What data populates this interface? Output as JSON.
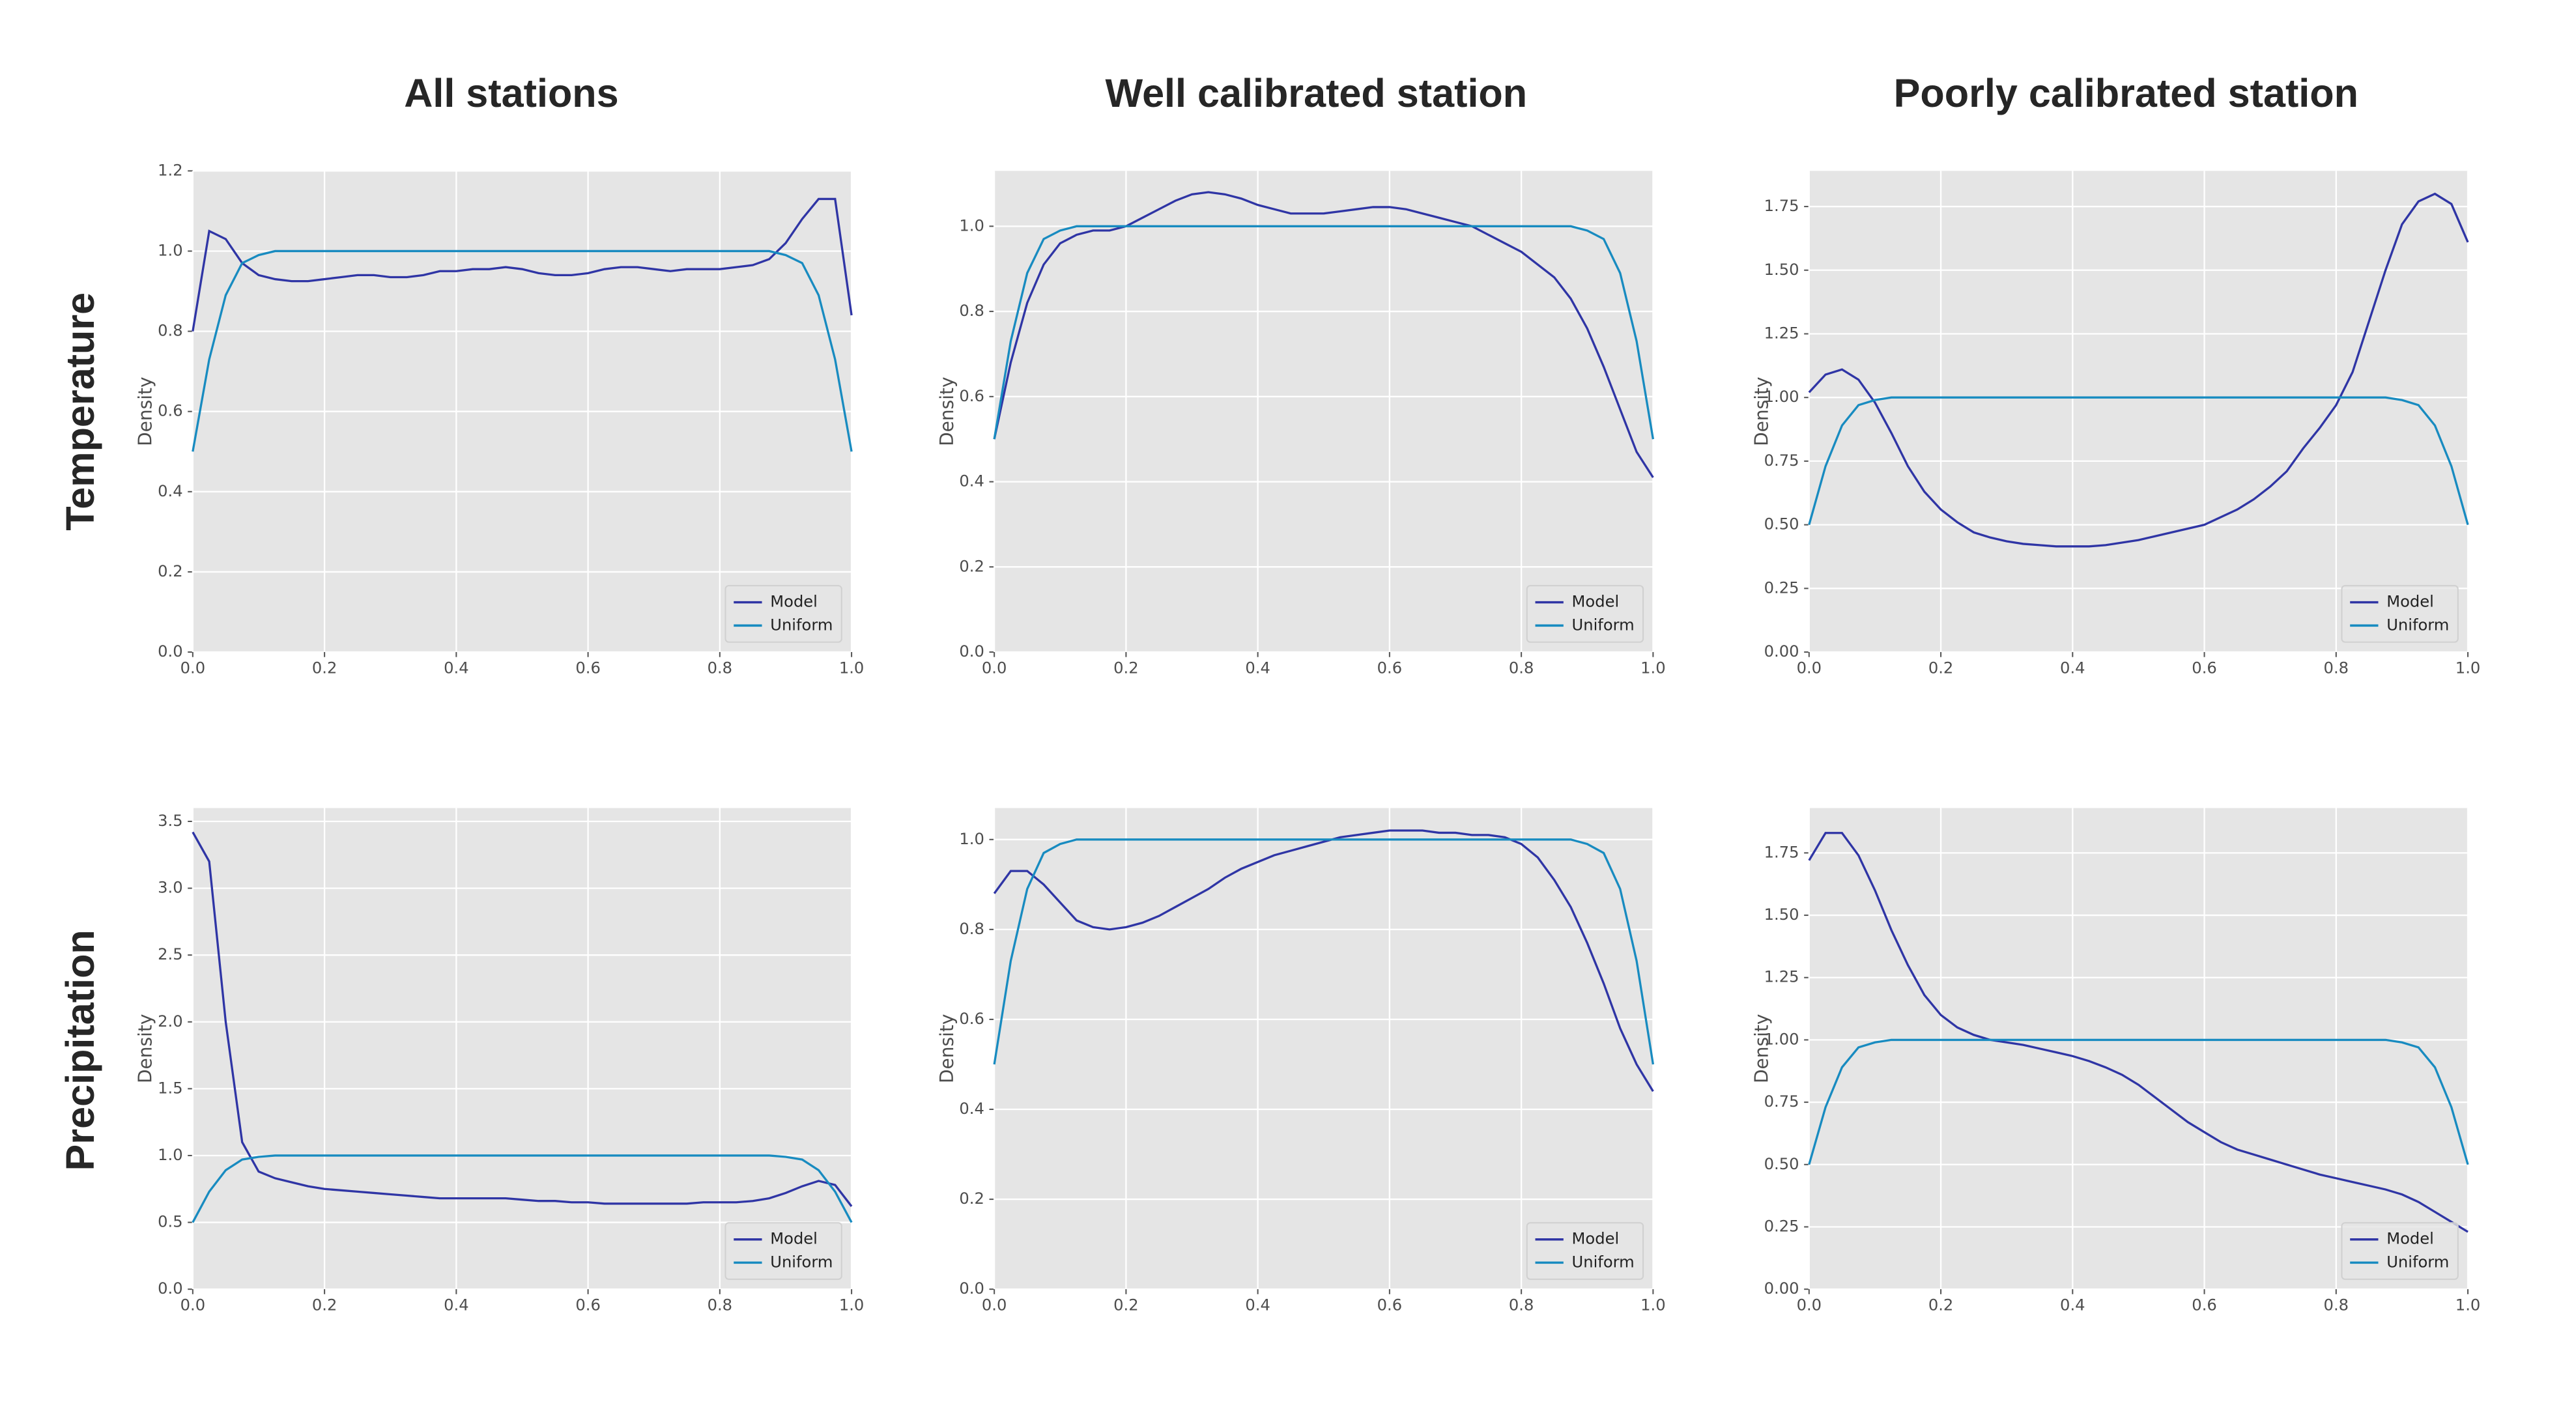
{
  "column_titles": [
    "All stations",
    "Well calibrated station",
    "Poorly calibrated station"
  ],
  "row_labels": [
    "Temperature",
    "Precipitation"
  ],
  "chart_data": [
    {
      "type": "line",
      "ylabel": "Density",
      "legend": "lower right",
      "grid": true,
      "x": [
        0,
        0.025,
        0.05,
        0.075,
        0.1,
        0.125,
        0.15,
        0.175,
        0.2,
        0.225,
        0.25,
        0.275,
        0.3,
        0.325,
        0.35,
        0.375,
        0.4,
        0.425,
        0.45,
        0.475,
        0.5,
        0.525,
        0.55,
        0.575,
        0.6,
        0.625,
        0.65,
        0.675,
        0.7,
        0.725,
        0.75,
        0.775,
        0.8,
        0.825,
        0.85,
        0.875,
        0.9,
        0.925,
        0.95,
        0.975,
        1
      ],
      "xlim": [
        0,
        1
      ],
      "xticks": [
        {
          "value": 0,
          "label": "0.0"
        },
        0.2,
        0.4,
        0.6,
        0.8,
        {
          "value": 1,
          "label": "1.0"
        }
      ],
      "ylim": [
        0,
        1.2
      ],
      "yticks": [
        {
          "value": 0,
          "label": "0.0"
        },
        0.2,
        0.4,
        0.6,
        0.8,
        {
          "value": 1,
          "label": "1.0"
        },
        1.2
      ],
      "series": [
        {
          "name": "Model",
          "color": "#2f35a5",
          "values": [
            0.8,
            1.05,
            1.03,
            0.97,
            0.94,
            0.93,
            0.925,
            0.925,
            0.93,
            0.935,
            0.94,
            0.94,
            0.935,
            0.935,
            0.94,
            0.95,
            0.95,
            0.955,
            0.955,
            0.96,
            0.955,
            0.945,
            0.94,
            0.94,
            0.945,
            0.955,
            0.96,
            0.96,
            0.955,
            0.95,
            0.955,
            0.955,
            0.955,
            0.96,
            0.965,
            0.98,
            1.02,
            1.08,
            1.13,
            1.13,
            0.84
          ]
        },
        {
          "name": "Uniform",
          "color": "#188bc0",
          "values": [
            0.5,
            0.73,
            0.89,
            0.97,
            0.99,
            1,
            1,
            1,
            1,
            1,
            1,
            1,
            1,
            1,
            1,
            1,
            1,
            1,
            1,
            1,
            1,
            1,
            1,
            1,
            1,
            1,
            1,
            1,
            1,
            1,
            1,
            1,
            1,
            1,
            1,
            1,
            0.99,
            0.97,
            0.89,
            0.73,
            0.5
          ]
        }
      ]
    },
    {
      "type": "line",
      "ylabel": "Density",
      "legend": "lower right",
      "grid": true,
      "x": [
        0,
        0.025,
        0.05,
        0.075,
        0.1,
        0.125,
        0.15,
        0.175,
        0.2,
        0.225,
        0.25,
        0.275,
        0.3,
        0.325,
        0.35,
        0.375,
        0.4,
        0.425,
        0.45,
        0.475,
        0.5,
        0.525,
        0.55,
        0.575,
        0.6,
        0.625,
        0.65,
        0.675,
        0.7,
        0.725,
        0.75,
        0.775,
        0.8,
        0.825,
        0.85,
        0.875,
        0.9,
        0.925,
        0.95,
        0.975,
        1
      ],
      "xlim": [
        0,
        1
      ],
      "xticks": [
        {
          "value": 0,
          "label": "0.0"
        },
        0.2,
        0.4,
        0.6,
        0.8,
        {
          "value": 1,
          "label": "1.0"
        }
      ],
      "ylim": [
        0,
        1.13
      ],
      "yticks": [
        {
          "value": 0,
          "label": "0.0"
        },
        0.2,
        0.4,
        0.6,
        0.8,
        {
          "value": 1,
          "label": "1.0"
        }
      ],
      "series": [
        {
          "name": "Model",
          "color": "#2f35a5",
          "values": [
            0.5,
            0.68,
            0.82,
            0.91,
            0.96,
            0.98,
            0.99,
            0.99,
            1.0,
            1.02,
            1.04,
            1.06,
            1.075,
            1.08,
            1.075,
            1.065,
            1.05,
            1.04,
            1.03,
            1.03,
            1.03,
            1.035,
            1.04,
            1.045,
            1.045,
            1.04,
            1.03,
            1.02,
            1.01,
            1.0,
            0.98,
            0.96,
            0.94,
            0.91,
            0.88,
            0.83,
            0.76,
            0.67,
            0.57,
            0.47,
            0.41
          ]
        },
        {
          "name": "Uniform",
          "color": "#188bc0",
          "values": [
            0.5,
            0.73,
            0.89,
            0.97,
            0.99,
            1,
            1,
            1,
            1,
            1,
            1,
            1,
            1,
            1,
            1,
            1,
            1,
            1,
            1,
            1,
            1,
            1,
            1,
            1,
            1,
            1,
            1,
            1,
            1,
            1,
            1,
            1,
            1,
            1,
            1,
            1,
            0.99,
            0.97,
            0.89,
            0.73,
            0.5
          ]
        }
      ]
    },
    {
      "type": "line",
      "ylabel": "Density",
      "legend": "lower right",
      "grid": true,
      "x": [
        0,
        0.025,
        0.05,
        0.075,
        0.1,
        0.125,
        0.15,
        0.175,
        0.2,
        0.225,
        0.25,
        0.275,
        0.3,
        0.325,
        0.35,
        0.375,
        0.4,
        0.425,
        0.45,
        0.475,
        0.5,
        0.525,
        0.55,
        0.575,
        0.6,
        0.625,
        0.65,
        0.675,
        0.7,
        0.725,
        0.75,
        0.775,
        0.8,
        0.825,
        0.85,
        0.875,
        0.9,
        0.925,
        0.95,
        0.975,
        1
      ],
      "xlim": [
        0,
        1
      ],
      "xticks": [
        {
          "value": 0,
          "label": "0.0"
        },
        0.2,
        0.4,
        0.6,
        0.8,
        {
          "value": 1,
          "label": "1.0"
        }
      ],
      "ylim": [
        0,
        1.89
      ],
      "yticks": [
        {
          "value": 0,
          "label": "0.00"
        },
        0.25,
        {
          "value": 0.5,
          "label": "0.50"
        },
        0.75,
        {
          "value": 1,
          "label": "1.00"
        },
        1.25,
        {
          "value": 1.5,
          "label": "1.50"
        },
        1.75
      ],
      "series": [
        {
          "name": "Model",
          "color": "#2f35a5",
          "values": [
            1.02,
            1.09,
            1.11,
            1.07,
            0.98,
            0.86,
            0.73,
            0.63,
            0.56,
            0.51,
            0.47,
            0.45,
            0.435,
            0.425,
            0.42,
            0.415,
            0.415,
            0.415,
            0.42,
            0.43,
            0.44,
            0.455,
            0.47,
            0.485,
            0.5,
            0.53,
            0.56,
            0.6,
            0.65,
            0.71,
            0.8,
            0.88,
            0.97,
            1.1,
            1.3,
            1.5,
            1.68,
            1.77,
            1.8,
            1.76,
            1.61
          ]
        },
        {
          "name": "Uniform",
          "color": "#188bc0",
          "values": [
            0.5,
            0.73,
            0.89,
            0.97,
            0.99,
            1,
            1,
            1,
            1,
            1,
            1,
            1,
            1,
            1,
            1,
            1,
            1,
            1,
            1,
            1,
            1,
            1,
            1,
            1,
            1,
            1,
            1,
            1,
            1,
            1,
            1,
            1,
            1,
            1,
            1,
            1,
            0.99,
            0.97,
            0.89,
            0.73,
            0.5
          ]
        }
      ]
    },
    {
      "type": "line",
      "ylabel": "Density",
      "legend": "lower right",
      "grid": true,
      "x": [
        0,
        0.025,
        0.05,
        0.075,
        0.1,
        0.125,
        0.15,
        0.175,
        0.2,
        0.225,
        0.25,
        0.275,
        0.3,
        0.325,
        0.35,
        0.375,
        0.4,
        0.425,
        0.45,
        0.475,
        0.5,
        0.525,
        0.55,
        0.575,
        0.6,
        0.625,
        0.65,
        0.675,
        0.7,
        0.725,
        0.75,
        0.775,
        0.8,
        0.825,
        0.85,
        0.875,
        0.9,
        0.925,
        0.95,
        0.975,
        1
      ],
      "xlim": [
        0,
        1
      ],
      "xticks": [
        {
          "value": 0,
          "label": "0.0"
        },
        0.2,
        0.4,
        0.6,
        0.8,
        {
          "value": 1,
          "label": "1.0"
        }
      ],
      "ylim": [
        0,
        3.6
      ],
      "yticks": [
        {
          "value": 0,
          "label": "0.0"
        },
        0.5,
        {
          "value": 1,
          "label": "1.0"
        },
        1.5,
        {
          "value": 2,
          "label": "2.0"
        },
        2.5,
        {
          "value": 3,
          "label": "3.0"
        },
        3.5
      ],
      "series": [
        {
          "name": "Model",
          "color": "#2f35a5",
          "values": [
            3.42,
            3.2,
            2.0,
            1.1,
            0.88,
            0.83,
            0.8,
            0.77,
            0.75,
            0.74,
            0.73,
            0.72,
            0.71,
            0.7,
            0.69,
            0.68,
            0.68,
            0.68,
            0.68,
            0.68,
            0.67,
            0.66,
            0.66,
            0.65,
            0.65,
            0.64,
            0.64,
            0.64,
            0.64,
            0.64,
            0.64,
            0.65,
            0.65,
            0.65,
            0.66,
            0.68,
            0.72,
            0.77,
            0.81,
            0.78,
            0.62
          ]
        },
        {
          "name": "Uniform",
          "color": "#188bc0",
          "values": [
            0.5,
            0.73,
            0.89,
            0.97,
            0.99,
            1,
            1,
            1,
            1,
            1,
            1,
            1,
            1,
            1,
            1,
            1,
            1,
            1,
            1,
            1,
            1,
            1,
            1,
            1,
            1,
            1,
            1,
            1,
            1,
            1,
            1,
            1,
            1,
            1,
            1,
            1,
            0.99,
            0.97,
            0.89,
            0.73,
            0.5
          ]
        }
      ]
    },
    {
      "type": "line",
      "ylabel": "Density",
      "legend": "lower right",
      "grid": true,
      "x": [
        0,
        0.025,
        0.05,
        0.075,
        0.1,
        0.125,
        0.15,
        0.175,
        0.2,
        0.225,
        0.25,
        0.275,
        0.3,
        0.325,
        0.35,
        0.375,
        0.4,
        0.425,
        0.45,
        0.475,
        0.5,
        0.525,
        0.55,
        0.575,
        0.6,
        0.625,
        0.65,
        0.675,
        0.7,
        0.725,
        0.75,
        0.775,
        0.8,
        0.825,
        0.85,
        0.875,
        0.9,
        0.925,
        0.95,
        0.975,
        1
      ],
      "xlim": [
        0,
        1
      ],
      "xticks": [
        {
          "value": 0,
          "label": "0.0"
        },
        0.2,
        0.4,
        0.6,
        0.8,
        {
          "value": 1,
          "label": "1.0"
        }
      ],
      "ylim": [
        0,
        1.07
      ],
      "yticks": [
        {
          "value": 0,
          "label": "0.0"
        },
        0.2,
        0.4,
        0.6,
        0.8,
        {
          "value": 1,
          "label": "1.0"
        }
      ],
      "series": [
        {
          "name": "Model",
          "color": "#2f35a5",
          "values": [
            0.88,
            0.93,
            0.93,
            0.9,
            0.86,
            0.82,
            0.805,
            0.8,
            0.805,
            0.815,
            0.83,
            0.85,
            0.87,
            0.89,
            0.915,
            0.935,
            0.95,
            0.965,
            0.975,
            0.985,
            0.995,
            1.005,
            1.01,
            1.015,
            1.02,
            1.02,
            1.02,
            1.015,
            1.015,
            1.01,
            1.01,
            1.005,
            0.99,
            0.96,
            0.91,
            0.85,
            0.77,
            0.68,
            0.58,
            0.5,
            0.44
          ]
        },
        {
          "name": "Uniform",
          "color": "#188bc0",
          "values": [
            0.5,
            0.73,
            0.89,
            0.97,
            0.99,
            1,
            1,
            1,
            1,
            1,
            1,
            1,
            1,
            1,
            1,
            1,
            1,
            1,
            1,
            1,
            1,
            1,
            1,
            1,
            1,
            1,
            1,
            1,
            1,
            1,
            1,
            1,
            1,
            1,
            1,
            1,
            0.99,
            0.97,
            0.89,
            0.73,
            0.5
          ]
        }
      ]
    },
    {
      "type": "line",
      "ylabel": "Density",
      "legend": "lower right",
      "grid": true,
      "x": [
        0,
        0.025,
        0.05,
        0.075,
        0.1,
        0.125,
        0.15,
        0.175,
        0.2,
        0.225,
        0.25,
        0.275,
        0.3,
        0.325,
        0.35,
        0.375,
        0.4,
        0.425,
        0.45,
        0.475,
        0.5,
        0.525,
        0.55,
        0.575,
        0.6,
        0.625,
        0.65,
        0.675,
        0.7,
        0.725,
        0.75,
        0.775,
        0.8,
        0.825,
        0.85,
        0.875,
        0.9,
        0.925,
        0.95,
        0.975,
        1
      ],
      "xlim": [
        0,
        1
      ],
      "xticks": [
        {
          "value": 0,
          "label": "0.0"
        },
        0.2,
        0.4,
        0.6,
        0.8,
        {
          "value": 1,
          "label": "1.0"
        }
      ],
      "ylim": [
        0,
        1.93
      ],
      "yticks": [
        {
          "value": 0,
          "label": "0.00"
        },
        0.25,
        {
          "value": 0.5,
          "label": "0.50"
        },
        0.75,
        {
          "value": 1,
          "label": "1.00"
        },
        1.25,
        {
          "value": 1.5,
          "label": "1.50"
        },
        1.75
      ],
      "series": [
        {
          "name": "Model",
          "color": "#2f35a5",
          "values": [
            1.72,
            1.83,
            1.83,
            1.74,
            1.6,
            1.44,
            1.3,
            1.18,
            1.1,
            1.05,
            1.02,
            1.0,
            0.99,
            0.98,
            0.965,
            0.95,
            0.935,
            0.915,
            0.89,
            0.86,
            0.82,
            0.77,
            0.72,
            0.67,
            0.63,
            0.59,
            0.56,
            0.54,
            0.52,
            0.5,
            0.48,
            0.46,
            0.445,
            0.43,
            0.415,
            0.4,
            0.38,
            0.35,
            0.31,
            0.27,
            0.23
          ]
        },
        {
          "name": "Uniform",
          "color": "#188bc0",
          "values": [
            0.5,
            0.73,
            0.89,
            0.97,
            0.99,
            1,
            1,
            1,
            1,
            1,
            1,
            1,
            1,
            1,
            1,
            1,
            1,
            1,
            1,
            1,
            1,
            1,
            1,
            1,
            1,
            1,
            1,
            1,
            1,
            1,
            1,
            1,
            1,
            1,
            1,
            1,
            0.99,
            0.97,
            0.89,
            0.73,
            0.5
          ]
        }
      ]
    }
  ]
}
